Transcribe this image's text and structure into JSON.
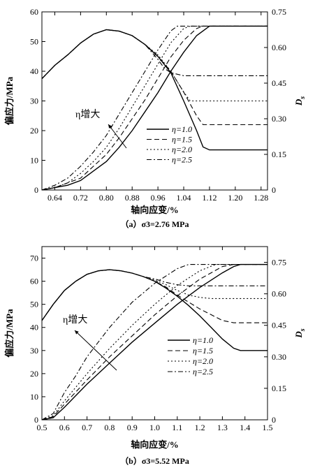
{
  "chart_data": [
    {
      "type": "line",
      "caption": "（a）σ3=2.76 MPa",
      "xlabel": "轴向应变/%",
      "ylabel": "偏应力/MPa",
      "y2label": "Ds",
      "xlim": [
        0.6,
        1.3
      ],
      "ylim": [
        0,
        60
      ],
      "y2lim": [
        0,
        0.75
      ],
      "xticks": [
        "0.64",
        "0.72",
        "0.80",
        "0.88",
        "0.96",
        "1.04",
        "1.12",
        "1.20",
        "1.28"
      ],
      "yticks": [
        "0",
        "10",
        "20",
        "30",
        "40",
        "50",
        "60"
      ],
      "y2ticks": [
        "0",
        "0.15",
        "0.30",
        "0.45",
        "0.60",
        "0.75"
      ],
      "annotation": "η增大",
      "legend": [
        "η=1.0",
        "η=1.5",
        "η=2.0",
        "η=2.5"
      ],
      "stress_series": [
        {
          "name": "η=1.0",
          "x": [
            0.6,
            0.64,
            0.68,
            0.72,
            0.76,
            0.8,
            0.84,
            0.88,
            0.92,
            0.96,
            1.0,
            1.04,
            1.08,
            1.1,
            1.12,
            1.3
          ],
          "y": [
            37.5,
            42,
            45.5,
            49.5,
            52.5,
            54,
            53.5,
            52,
            49,
            45,
            39.5,
            30,
            20,
            14.5,
            13.5,
            13.5
          ]
        },
        {
          "name": "η=1.5",
          "x": [
            0.6,
            0.64,
            0.68,
            0.72,
            0.76,
            0.8,
            0.84,
            0.88,
            0.92,
            0.96,
            1.0,
            1.04,
            1.08,
            1.1,
            1.3
          ],
          "y": [
            37.5,
            42,
            45.5,
            49.5,
            52.5,
            54,
            53.5,
            52,
            49,
            45,
            40,
            33,
            25,
            22,
            22
          ]
        },
        {
          "name": "η=2.0",
          "x": [
            0.6,
            0.64,
            0.68,
            0.72,
            0.76,
            0.8,
            0.84,
            0.88,
            0.92,
            0.96,
            1.0,
            1.04,
            1.06,
            1.3
          ],
          "y": [
            37.5,
            42,
            45.5,
            49.5,
            52.5,
            54,
            53.5,
            52,
            49,
            45.5,
            40,
            33,
            30,
            30
          ]
        },
        {
          "name": "η=2.5",
          "x": [
            0.6,
            0.64,
            0.68,
            0.72,
            0.76,
            0.8,
            0.84,
            0.88,
            0.92,
            0.96,
            0.98,
            1.0,
            1.04,
            1.3
          ],
          "y": [
            37.5,
            42,
            45.5,
            49.5,
            52.5,
            54,
            53.5,
            52,
            49,
            44,
            41,
            39.5,
            38.5,
            38.5
          ]
        }
      ],
      "ds_series": [
        {
          "name": "η=1.0",
          "x": [
            0.6,
            0.64,
            0.68,
            0.72,
            0.76,
            0.8,
            0.84,
            0.88,
            0.92,
            0.96,
            1.0,
            1.04,
            1.08,
            1.12,
            1.3
          ],
          "y": [
            0,
            0.01,
            0.02,
            0.04,
            0.08,
            0.12,
            0.18,
            0.25,
            0.33,
            0.41,
            0.5,
            0.58,
            0.65,
            0.69,
            0.69
          ]
        },
        {
          "name": "η=1.5",
          "x": [
            0.6,
            0.64,
            0.68,
            0.72,
            0.76,
            0.8,
            0.84,
            0.88,
            0.92,
            0.96,
            1.0,
            1.04,
            1.08,
            1.1,
            1.3
          ],
          "y": [
            0,
            0.01,
            0.03,
            0.05,
            0.1,
            0.15,
            0.22,
            0.3,
            0.38,
            0.47,
            0.56,
            0.63,
            0.68,
            0.69,
            0.69
          ]
        },
        {
          "name": "η=2.0",
          "x": [
            0.6,
            0.64,
            0.68,
            0.72,
            0.76,
            0.8,
            0.84,
            0.88,
            0.92,
            0.96,
            1.0,
            1.04,
            1.06,
            1.3
          ],
          "y": [
            0,
            0.01,
            0.03,
            0.07,
            0.12,
            0.18,
            0.26,
            0.35,
            0.44,
            0.53,
            0.62,
            0.68,
            0.69,
            0.69
          ]
        },
        {
          "name": "η=2.5",
          "x": [
            0.6,
            0.64,
            0.68,
            0.72,
            0.76,
            0.8,
            0.84,
            0.88,
            0.92,
            0.96,
            1.0,
            1.02,
            1.04,
            1.3
          ],
          "y": [
            0,
            0.02,
            0.05,
            0.1,
            0.16,
            0.23,
            0.32,
            0.41,
            0.5,
            0.59,
            0.67,
            0.69,
            0.69,
            0.69
          ]
        }
      ]
    },
    {
      "type": "line",
      "caption": "（b）σ3=5.52 MPa",
      "xlabel": "轴向应变/%",
      "ylabel": "偏应力/MPa",
      "y2label": "Ds",
      "xlim": [
        0.5,
        1.5
      ],
      "ylim": [
        0,
        75
      ],
      "y2lim": [
        0,
        0.825
      ],
      "xticks": [
        "0.5",
        "0.6",
        "0.7",
        "0.8",
        "0.9",
        "1.0",
        "1.1",
        "1.2",
        "1.3",
        "1.4",
        "1.5"
      ],
      "yticks": [
        "0",
        "10",
        "20",
        "30",
        "40",
        "50",
        "60",
        "70"
      ],
      "y2ticks": [
        "0",
        "0.15",
        "0.30",
        "0.45",
        "0.60",
        "0.75"
      ],
      "annotation": "η增大",
      "legend": [
        "η=1.0",
        "η=1.5",
        "η=2.0",
        "η=2.5"
      ],
      "stress_series": [
        {
          "name": "η=1.0",
          "x": [
            0.5,
            0.55,
            0.6,
            0.65,
            0.7,
            0.75,
            0.8,
            0.85,
            0.9,
            0.95,
            1.0,
            1.05,
            1.1,
            1.15,
            1.2,
            1.25,
            1.3,
            1.35,
            1.38,
            1.5
          ],
          "y": [
            43,
            50,
            56,
            60,
            63,
            64.5,
            65,
            64.5,
            63.5,
            62,
            60,
            57,
            53.5,
            49.5,
            45,
            40,
            35,
            31,
            30,
            30
          ]
        },
        {
          "name": "η=1.5",
          "x": [
            0.5,
            0.55,
            0.6,
            0.65,
            0.7,
            0.75,
            0.8,
            0.85,
            0.9,
            0.95,
            1.0,
            1.05,
            1.1,
            1.15,
            1.2,
            1.25,
            1.3,
            1.35,
            1.5
          ],
          "y": [
            43,
            50,
            56,
            60,
            63,
            64.5,
            65,
            64.5,
            63.5,
            62,
            60,
            57.5,
            54,
            51,
            48,
            45.5,
            43,
            42,
            42
          ]
        },
        {
          "name": "η=2.0",
          "x": [
            0.5,
            0.55,
            0.6,
            0.65,
            0.7,
            0.75,
            0.8,
            0.85,
            0.9,
            0.95,
            1.0,
            1.05,
            1.1,
            1.15,
            1.2,
            1.25,
            1.5
          ],
          "y": [
            43,
            50,
            56,
            60,
            63,
            64.5,
            65,
            64.5,
            63.5,
            62,
            60.5,
            58.5,
            56,
            54,
            53,
            52.5,
            52.5
          ]
        },
        {
          "name": "η=2.5",
          "x": [
            0.5,
            0.55,
            0.6,
            0.65,
            0.7,
            0.75,
            0.8,
            0.85,
            0.9,
            0.95,
            1.0,
            1.05,
            1.1,
            1.15,
            1.5
          ],
          "y": [
            43,
            50,
            56,
            60,
            63,
            64.5,
            65,
            64.5,
            63.5,
            62,
            61,
            59.5,
            58.5,
            58,
            58
          ]
        }
      ],
      "ds_series": [
        {
          "name": "η=1.0",
          "x": [
            0.5,
            0.55,
            0.6,
            0.7,
            0.8,
            0.9,
            1.0,
            1.1,
            1.2,
            1.3,
            1.35,
            1.38,
            1.5
          ],
          "y": [
            0,
            0.01,
            0.06,
            0.17,
            0.27,
            0.37,
            0.46,
            0.55,
            0.63,
            0.7,
            0.73,
            0.74,
            0.74
          ]
        },
        {
          "name": "η=1.5",
          "x": [
            0.5,
            0.55,
            0.6,
            0.7,
            0.8,
            0.9,
            1.0,
            1.1,
            1.2,
            1.3,
            1.35,
            1.5
          ],
          "y": [
            0,
            0.015,
            0.075,
            0.19,
            0.3,
            0.4,
            0.5,
            0.59,
            0.67,
            0.73,
            0.74,
            0.74
          ]
        },
        {
          "name": "η=2.0",
          "x": [
            0.5,
            0.55,
            0.6,
            0.7,
            0.8,
            0.9,
            1.0,
            1.1,
            1.2,
            1.27,
            1.5
          ],
          "y": [
            0,
            0.02,
            0.09,
            0.22,
            0.34,
            0.45,
            0.55,
            0.64,
            0.71,
            0.74,
            0.74
          ]
        },
        {
          "name": "η=2.5",
          "x": [
            0.5,
            0.55,
            0.6,
            0.65,
            0.7,
            0.8,
            0.9,
            1.0,
            1.1,
            1.15,
            1.5
          ],
          "y": [
            0,
            0.03,
            0.13,
            0.21,
            0.3,
            0.44,
            0.56,
            0.65,
            0.72,
            0.74,
            0.74
          ]
        }
      ]
    }
  ]
}
